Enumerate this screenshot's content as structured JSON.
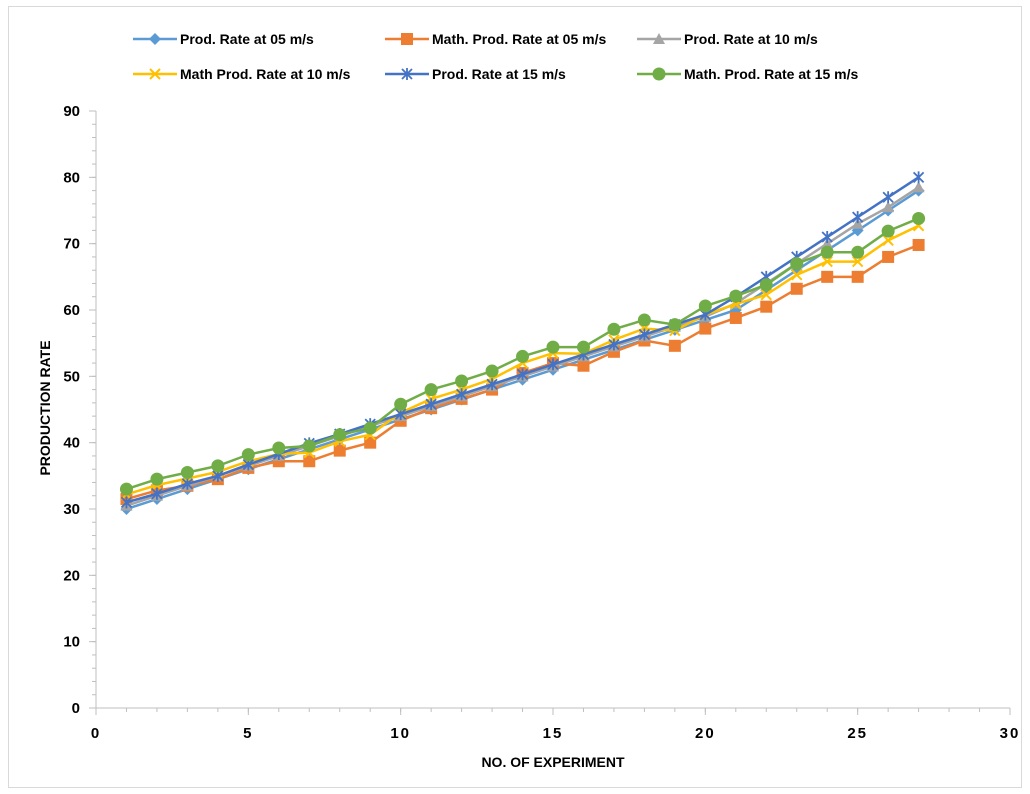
{
  "chart_data": {
    "type": "line",
    "title": "",
    "xlabel": "NO. OF EXPERIMENT",
    "ylabel": "PRODUCTION RATE",
    "xlim": [
      0,
      30
    ],
    "ylim": [
      0,
      90
    ],
    "x_ticks": [
      "0",
      "5",
      "10",
      "15",
      "20",
      "25",
      "30"
    ],
    "y_ticks": [
      "0",
      "10",
      "20",
      "30",
      "40",
      "50",
      "60",
      "70",
      "80",
      "90"
    ],
    "grid": false,
    "legend_position": "top",
    "x": [
      1,
      2,
      3,
      4,
      5,
      6,
      7,
      8,
      9,
      10,
      11,
      12,
      13,
      14,
      15,
      16,
      17,
      18,
      19,
      20,
      21,
      22,
      23,
      24,
      25,
      26,
      27
    ],
    "series": [
      {
        "name": "Prod. Rate at 05 m/s",
        "color": "#5B9BD5",
        "marker": "diamond",
        "values": [
          30,
          31.5,
          33,
          34.5,
          36,
          37.5,
          39,
          40.5,
          42,
          43.5,
          45,
          46.5,
          48,
          49.5,
          51,
          52.5,
          54,
          55.5,
          57,
          58.5,
          60,
          63,
          66,
          69,
          72,
          75,
          78
        ]
      },
      {
        "name": "Math. Prod. Rate at 05 m/s",
        "color": "#ED7D31",
        "marker": "square",
        "values": [
          31.5,
          32.8,
          33.5,
          34.5,
          36.2,
          37.2,
          37.2,
          38.8,
          40,
          43.3,
          45.2,
          46.6,
          48,
          50.5,
          52,
          51.6,
          53.7,
          55.4,
          54.6,
          57.2,
          58.8,
          60.5,
          63.2,
          65,
          65,
          68,
          69.8
        ]
      },
      {
        "name": "Prod. Rate at 10 m/s",
        "color": "#A5A5A5",
        "marker": "triangle",
        "values": [
          30.5,
          32,
          33.5,
          35,
          36.5,
          38,
          39.5,
          41,
          42.5,
          44,
          45.5,
          47,
          48.5,
          50,
          51.5,
          53,
          54.5,
          56,
          57.5,
          59,
          61,
          64,
          67,
          70,
          73,
          75.5,
          78.5
        ]
      },
      {
        "name": "Math Prod. Rate at 10 m/s",
        "color": "#FFC000",
        "marker": "x",
        "values": [
          32.2,
          33.6,
          34.6,
          35.6,
          37.2,
          38.3,
          38.5,
          40.2,
          41.2,
          44.5,
          46.6,
          48,
          49.6,
          52,
          53.5,
          53.4,
          55.5,
          57.2,
          56.9,
          59.3,
          60.9,
          62.3,
          65.3,
          67.3,
          67.3,
          70.5,
          72.7
        ]
      },
      {
        "name": "Prod. Rate at 15 m/s",
        "color": "#4472C4",
        "marker": "asterisk",
        "values": [
          31,
          32.3,
          33.8,
          35,
          36.7,
          38.3,
          39.9,
          41.3,
          42.8,
          44.3,
          45.8,
          47.3,
          48.8,
          50.3,
          51.8,
          53.3,
          54.8,
          56.3,
          57.8,
          59.3,
          62,
          65,
          68,
          71,
          74,
          77,
          80
        ]
      },
      {
        "name": "Math. Prod. Rate at 15 m/s",
        "color": "#70AD47",
        "marker": "circle",
        "values": [
          33,
          34.5,
          35.5,
          36.5,
          38.2,
          39.2,
          39.5,
          41.2,
          42.2,
          45.8,
          48,
          49.3,
          50.8,
          53,
          54.4,
          54.4,
          57.1,
          58.5,
          57.8,
          60.6,
          62.1,
          63.8,
          67,
          68.7,
          68.7,
          71.9,
          73.8
        ]
      }
    ]
  }
}
